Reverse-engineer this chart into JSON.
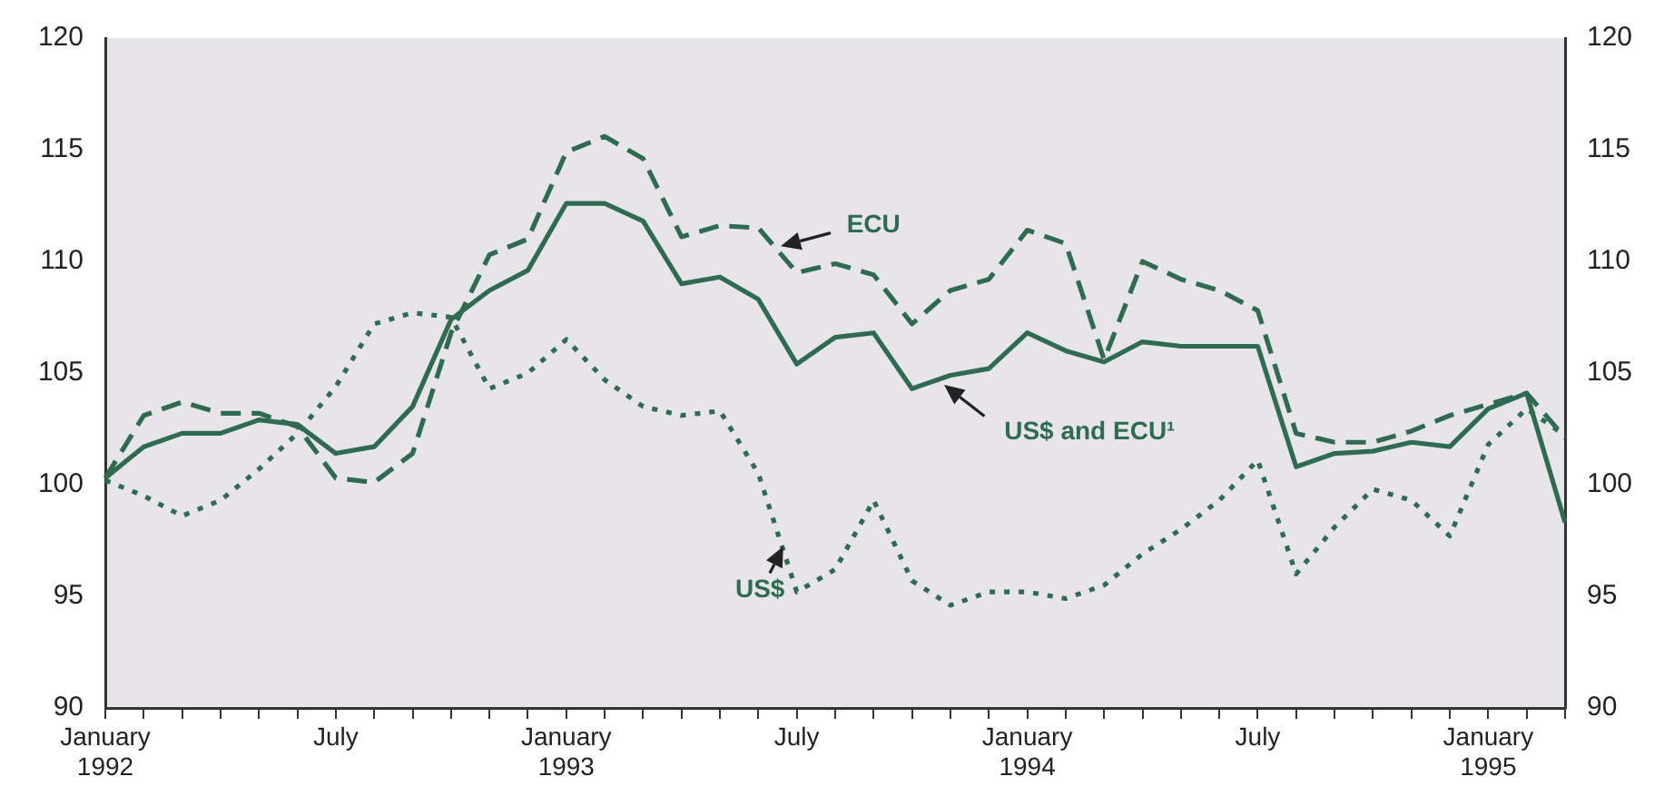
{
  "chart_data": {
    "type": "line",
    "categories": [
      "January 1992",
      null,
      null,
      null,
      null,
      null,
      "July",
      null,
      null,
      null,
      null,
      null,
      "January 1993",
      null,
      null,
      null,
      null,
      null,
      "July",
      null,
      null,
      null,
      null,
      null,
      "January 1994",
      null,
      null,
      null,
      null,
      null,
      "July",
      null,
      null,
      null,
      null,
      null,
      "January 1995",
      null,
      null
    ],
    "series": [
      {
        "name": "ECU",
        "color": "#2e6b50",
        "line_style": "dashed",
        "values": [
          100.3,
          103.1,
          103.7,
          103.2,
          103.2,
          102.6,
          100.3,
          100.1,
          101.4,
          106.8,
          110.3,
          111.0,
          114.9,
          115.6,
          114.6,
          111.1,
          111.6,
          111.5,
          109.5,
          109.9,
          109.4,
          107.2,
          108.7,
          109.2,
          111.4,
          110.8,
          105.6,
          110.0,
          109.2,
          108.7,
          107.8,
          102.3,
          101.9,
          101.9,
          102.4,
          103.1,
          103.6,
          104.1,
          102.1
        ]
      },
      {
        "name": "US$ and ECU¹",
        "color": "#2e6b50",
        "line_style": "solid",
        "values": [
          100.3,
          101.7,
          102.3,
          102.3,
          102.9,
          102.7,
          101.4,
          101.7,
          103.5,
          107.4,
          108.7,
          109.6,
          112.6,
          112.6,
          111.8,
          109.0,
          109.3,
          108.3,
          105.4,
          106.6,
          106.8,
          104.3,
          104.9,
          105.2,
          106.8,
          106.0,
          105.5,
          106.4,
          106.2,
          106.2,
          106.2,
          100.8,
          101.4,
          101.5,
          101.9,
          101.7,
          103.4,
          104.1,
          98.3
        ]
      },
      {
        "name": "US$",
        "color": "#2e6b50",
        "line_style": "dotted",
        "values": [
          100.2,
          99.5,
          98.6,
          99.3,
          100.7,
          102.3,
          104.4,
          107.2,
          107.7,
          107.5,
          104.3,
          105.0,
          106.5,
          104.7,
          103.5,
          103.1,
          103.3,
          100.5,
          95.2,
          96.2,
          99.3,
          95.7,
          94.6,
          95.2,
          95.2,
          94.9,
          95.5,
          96.9,
          98.0,
          99.3,
          101.1,
          96.0,
          98.1,
          99.8,
          99.3,
          97.7,
          101.8,
          103.4,
          102.2
        ]
      }
    ],
    "ylim": [
      90,
      120
    ],
    "yticks": [
      90,
      95,
      100,
      105,
      110,
      115,
      120
    ],
    "y2lim": [
      90,
      120
    ],
    "y2ticks": [
      90,
      95,
      100,
      105,
      110,
      115,
      120
    ],
    "legend": false,
    "marker": "none"
  }
}
